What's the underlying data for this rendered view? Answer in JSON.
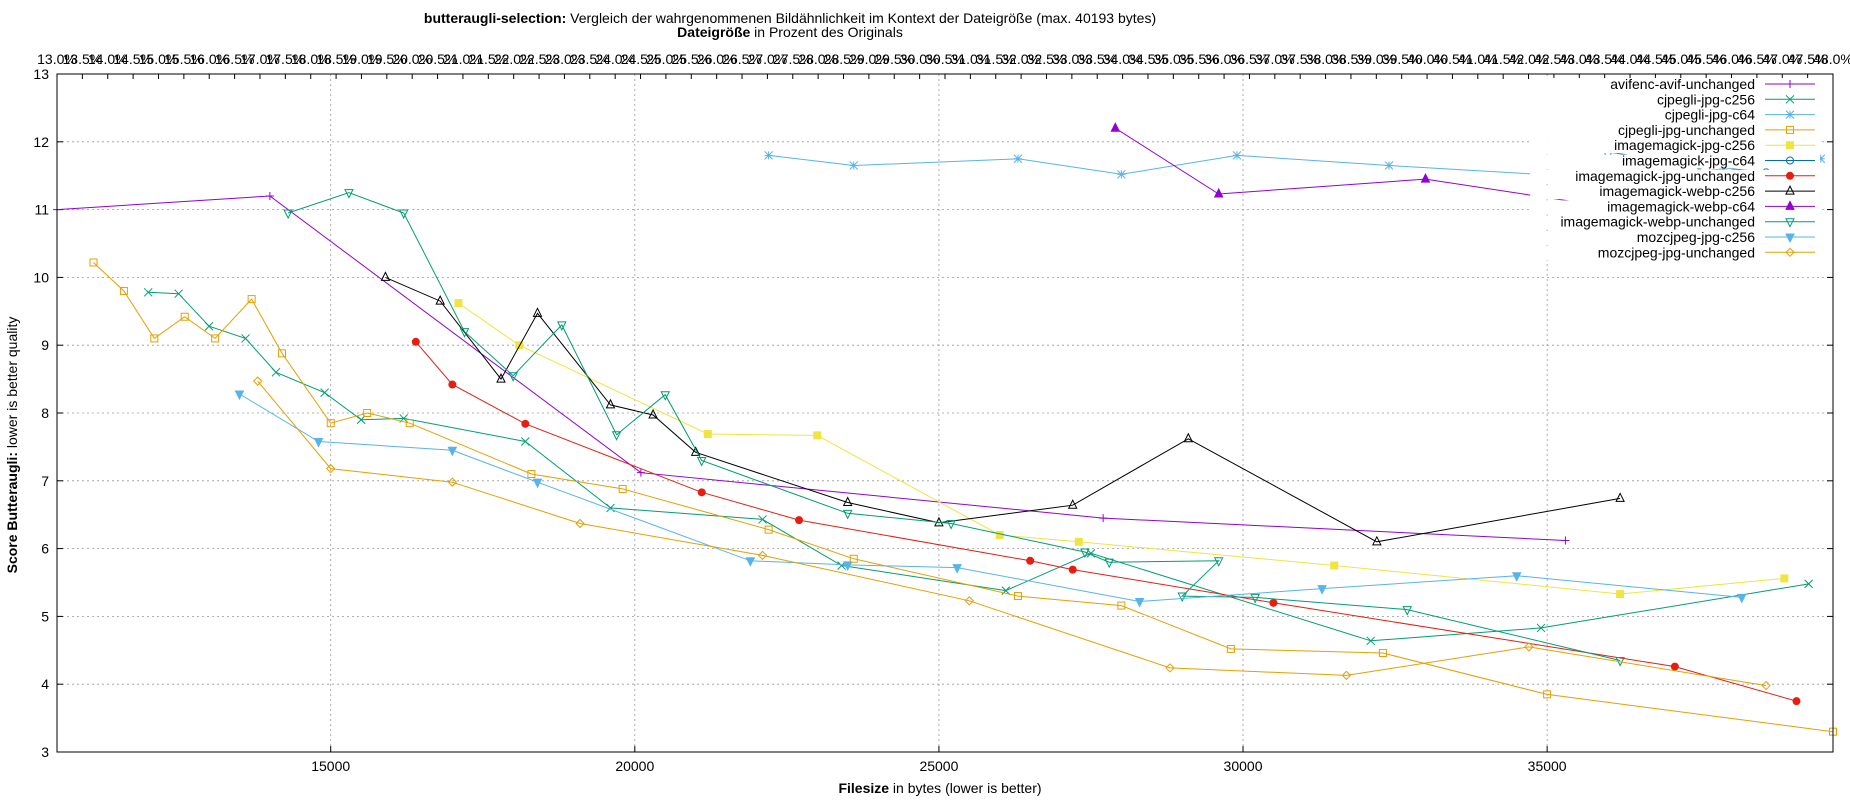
{
  "chart_data": {
    "type": "line",
    "title_bold": "butteraugli-selection:",
    "title_rest": " Vergleich der wahrgenommenen Bildähnlichkeit im Kontext der Dateigröße (max. 40193 bytes)",
    "x2label_bold": "Dateigröße",
    "x2label_rest": " in Prozent des Originals",
    "xlabel_bold": "Filesize",
    "xlabel_rest": " in bytes (lower is better)",
    "ylabel_bold": "Score Butteraugli:",
    "ylabel_rest": " lower is better quality",
    "xlim": [
      10500,
      39700
    ],
    "ylim": [
      3,
      13
    ],
    "x_ticks": [
      15000,
      20000,
      25000,
      30000,
      35000
    ],
    "y_ticks": [
      3,
      4,
      5,
      6,
      7,
      8,
      9,
      10,
      11,
      12,
      13
    ],
    "x2_ticks": [
      "13.0%",
      "13.5%",
      "14.0%",
      "14.5%",
      "15.0%",
      "15.5%",
      "16.0%",
      "16.5%",
      "17.0%",
      "17.5%",
      "18.0%",
      "18.5%",
      "19.0%",
      "19.5%",
      "20.0%",
      "20.5%",
      "21.0%",
      "21.5%",
      "22.0%",
      "22.5%",
      "23.0%",
      "23.5%",
      "24.0%",
      "24.5%",
      "25.0%",
      "25.5%",
      "26.0%",
      "26.5%",
      "27.0%",
      "27.5%",
      "28.0%",
      "28.5%",
      "29.0%",
      "29.5%",
      "30.0%",
      "30.5%",
      "31.0%",
      "31.5%",
      "32.0%",
      "32.5%",
      "33.0%",
      "33.5%",
      "34.0%",
      "34.5%",
      "35.0%",
      "35.5%",
      "36.0%",
      "36.5%",
      "37.0%",
      "37.5%",
      "38.0%",
      "38.5%",
      "39.0%",
      "39.5%",
      "40.0%",
      "40.5%",
      "41.0%",
      "41.5%",
      "42.0%",
      "42.5%",
      "43.0%",
      "43.5%",
      "44.0%",
      "44.5%",
      "45.0%",
      "45.5%",
      "46.0%",
      "46.5%",
      "47.0%",
      "47.5%",
      "48.0%"
    ],
    "grid": true,
    "legend_position": "top-right",
    "series": [
      {
        "name": "avifenc-avif-unchanged",
        "color": "#9400d3",
        "marker": "plus",
        "points": [
          [
            10500,
            11.0
          ],
          [
            14000,
            11.2
          ],
          [
            20100,
            7.12
          ],
          [
            27700,
            6.45
          ],
          [
            35300,
            6.12
          ]
        ]
      },
      {
        "name": "cjpegli-jpg-c256",
        "color": "#009e73",
        "marker": "cross",
        "points": [
          [
            12000,
            9.78
          ],
          [
            12500,
            9.76
          ],
          [
            13000,
            9.28
          ],
          [
            13600,
            9.1
          ],
          [
            14100,
            8.6
          ],
          [
            14900,
            8.3
          ],
          [
            15500,
            7.9
          ],
          [
            16200,
            7.92
          ],
          [
            18200,
            7.58
          ],
          [
            19600,
            6.6
          ],
          [
            22100,
            6.43
          ],
          [
            23400,
            5.75
          ],
          [
            26100,
            5.38
          ],
          [
            27500,
            5.93
          ],
          [
            32100,
            4.64
          ],
          [
            34900,
            4.83
          ],
          [
            39300,
            5.48
          ]
        ]
      },
      {
        "name": "cjpegli-jpg-c64",
        "color": "#56b4e9",
        "marker": "star",
        "points": [
          [
            22200,
            11.8
          ],
          [
            23600,
            11.65
          ],
          [
            26300,
            11.75
          ],
          [
            28000,
            11.52
          ],
          [
            29900,
            11.8
          ],
          [
            32400,
            11.65
          ],
          [
            36200,
            11.45
          ],
          [
            37900,
            11.6
          ],
          [
            39500,
            11.75
          ]
        ]
      },
      {
        "name": "cjpegli-jpg-unchanged",
        "color": "#e69f00",
        "marker": "square",
        "points": [
          [
            11100,
            10.22
          ],
          [
            11600,
            9.8
          ],
          [
            12100,
            9.1
          ],
          [
            12600,
            9.42
          ],
          [
            13100,
            9.1
          ],
          [
            13700,
            9.68
          ],
          [
            14200,
            8.88
          ],
          [
            15000,
            7.85
          ],
          [
            15600,
            8.0
          ],
          [
            16300,
            7.85
          ],
          [
            18300,
            7.1
          ],
          [
            19800,
            6.88
          ],
          [
            22200,
            6.28
          ],
          [
            23600,
            5.85
          ],
          [
            26300,
            5.3
          ],
          [
            28000,
            5.16
          ],
          [
            29800,
            4.52
          ],
          [
            32300,
            4.46
          ],
          [
            35000,
            3.85
          ],
          [
            39700,
            3.3
          ]
        ]
      },
      {
        "name": "imagemagick-jpg-c256",
        "color": "#f0e442",
        "marker": "filled-square",
        "points": [
          [
            17100,
            9.62
          ],
          [
            18100,
            9.0
          ],
          [
            21200,
            7.69
          ],
          [
            23000,
            7.67
          ],
          [
            26000,
            6.2
          ],
          [
            27300,
            6.1
          ],
          [
            31500,
            5.75
          ],
          [
            36200,
            5.33
          ],
          [
            38900,
            5.56
          ]
        ]
      },
      {
        "name": "imagemagick-jpg-c64",
        "color": "#0072b2",
        "marker": "circle",
        "points": [
          [
            36000,
            11.85
          ],
          [
            37500,
            11.65
          ],
          [
            38600,
            11.55
          ]
        ]
      },
      {
        "name": "imagemagick-jpg-unchanged",
        "color": "#e51e10",
        "marker": "filled-circle",
        "points": [
          [
            16400,
            9.05
          ],
          [
            17000,
            8.42
          ],
          [
            18200,
            7.84
          ],
          [
            21100,
            6.83
          ],
          [
            22700,
            6.42
          ],
          [
            26500,
            5.82
          ],
          [
            27200,
            5.69
          ],
          [
            30500,
            5.2
          ],
          [
            37100,
            4.26
          ],
          [
            39100,
            3.75
          ]
        ]
      },
      {
        "name": "imagemagick-webp-c256",
        "color": "#000000",
        "marker": "triangle",
        "points": [
          [
            15900,
            10.0
          ],
          [
            16800,
            9.65
          ],
          [
            17800,
            8.5
          ],
          [
            18400,
            9.47
          ],
          [
            19600,
            8.12
          ],
          [
            20300,
            7.97
          ],
          [
            21000,
            7.42
          ],
          [
            23500,
            6.68
          ],
          [
            25000,
            6.38
          ],
          [
            27200,
            6.64
          ],
          [
            29100,
            7.62
          ],
          [
            32200,
            6.1
          ],
          [
            36200,
            6.74
          ]
        ]
      },
      {
        "name": "imagemagick-webp-c64",
        "color": "#9400d3",
        "marker": "filled-triangle",
        "points": [
          [
            27900,
            12.2
          ],
          [
            29600,
            11.23
          ],
          [
            33000,
            11.45
          ],
          [
            36300,
            11.0
          ]
        ]
      },
      {
        "name": "imagemagick-webp-unchanged",
        "color": "#009e73",
        "marker": "triangle-down",
        "points": [
          [
            14300,
            10.95
          ],
          [
            15300,
            11.25
          ],
          [
            16200,
            10.95
          ],
          [
            17200,
            9.2
          ],
          [
            18000,
            8.55
          ],
          [
            18800,
            9.3
          ],
          [
            19700,
            7.68
          ],
          [
            20500,
            8.27
          ],
          [
            21100,
            7.3
          ],
          [
            23500,
            6.52
          ],
          [
            25200,
            6.37
          ],
          [
            27400,
            5.95
          ],
          [
            27800,
            5.8
          ],
          [
            29600,
            5.82
          ],
          [
            29000,
            5.3
          ],
          [
            30200,
            5.28
          ],
          [
            32700,
            5.1
          ],
          [
            36200,
            4.35
          ]
        ]
      },
      {
        "name": "mozcjpeg-jpg-c256",
        "color": "#56b4e9",
        "marker": "filled-triangle-down",
        "points": [
          [
            13500,
            8.28
          ],
          [
            14800,
            7.58
          ],
          [
            17000,
            7.45
          ],
          [
            18400,
            6.98
          ],
          [
            21900,
            5.82
          ],
          [
            23500,
            5.76
          ],
          [
            25300,
            5.72
          ],
          [
            28300,
            5.22
          ],
          [
            31300,
            5.41
          ],
          [
            34500,
            5.6
          ],
          [
            38200,
            5.28
          ]
        ]
      },
      {
        "name": "mozcjpeg-jpg-unchanged",
        "color": "#e69f00",
        "marker": "diamond",
        "points": [
          [
            13800,
            8.47
          ],
          [
            15000,
            7.18
          ],
          [
            17000,
            6.98
          ],
          [
            19100,
            6.37
          ],
          [
            22100,
            5.9
          ],
          [
            25500,
            5.23
          ],
          [
            28800,
            4.24
          ],
          [
            31700,
            4.13
          ],
          [
            34700,
            4.55
          ],
          [
            38600,
            3.98
          ]
        ]
      }
    ]
  }
}
